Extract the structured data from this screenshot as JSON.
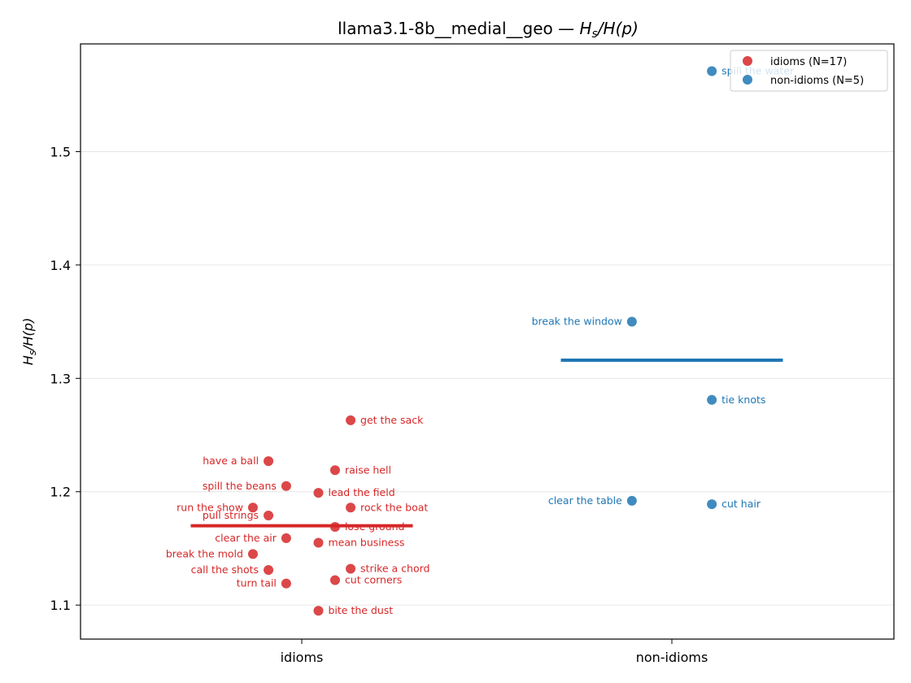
{
  "chart_data": {
    "type": "scatter",
    "title_main": "llama3.1-8b__medial__geo — ",
    "title_math": {
      "H": "H",
      "sub": "s",
      "rest": "/H(p)"
    },
    "ylabel_math": {
      "H": "H",
      "sub": "s",
      "rest": "/H(p)"
    },
    "xlabel": "",
    "categories": [
      "idioms",
      "non-idioms"
    ],
    "ylim": [
      1.07,
      1.595
    ],
    "yticks": [
      1.1,
      1.2,
      1.3,
      1.4,
      1.5
    ],
    "ytick_labels": [
      "1.1",
      "1.2",
      "1.3",
      "1.4",
      "1.5"
    ],
    "grid": "horizontal",
    "legend_position": "top-right",
    "series": [
      {
        "name": "idioms (N=17)",
        "category": "idioms",
        "color": "#d62728",
        "mean": 1.17,
        "points": [
          {
            "label": "get the sack",
            "y": 1.263,
            "offset": 0.22,
            "side": "right"
          },
          {
            "label": "have a ball",
            "y": 1.227,
            "offset": -0.15,
            "side": "left"
          },
          {
            "label": "raise hell",
            "y": 1.219,
            "offset": 0.15,
            "side": "right"
          },
          {
            "label": "spill the beans",
            "y": 1.205,
            "offset": -0.07,
            "side": "left"
          },
          {
            "label": "lead the field",
            "y": 1.199,
            "offset": 0.075,
            "side": "right"
          },
          {
            "label": "run the show",
            "y": 1.186,
            "offset": -0.22,
            "side": "left"
          },
          {
            "label": "rock the boat",
            "y": 1.186,
            "offset": 0.22,
            "side": "right"
          },
          {
            "label": "pull strings",
            "y": 1.179,
            "offset": -0.15,
            "side": "left"
          },
          {
            "label": "lose ground",
            "y": 1.169,
            "offset": 0.15,
            "side": "right"
          },
          {
            "label": "clear the air",
            "y": 1.159,
            "offset": -0.07,
            "side": "left"
          },
          {
            "label": "mean business",
            "y": 1.155,
            "offset": 0.075,
            "side": "right"
          },
          {
            "label": "break the mold",
            "y": 1.145,
            "offset": -0.22,
            "side": "left"
          },
          {
            "label": "call the shots",
            "y": 1.131,
            "offset": -0.15,
            "side": "left"
          },
          {
            "label": "strike a chord",
            "y": 1.132,
            "offset": 0.22,
            "side": "right"
          },
          {
            "label": "cut corners",
            "y": 1.122,
            "offset": 0.15,
            "side": "right"
          },
          {
            "label": "turn tail",
            "y": 1.119,
            "offset": -0.07,
            "side": "left"
          },
          {
            "label": "bite the dust",
            "y": 1.095,
            "offset": 0.075,
            "side": "right"
          }
        ]
      },
      {
        "name": "non-idioms (N=5)",
        "category": "non-idioms",
        "color": "#1f77b4",
        "mean": 1.316,
        "points": [
          {
            "label": "spill the water",
            "y": 1.571,
            "offset": 0.18,
            "side": "right"
          },
          {
            "label": "break the window",
            "y": 1.35,
            "offset": -0.18,
            "side": "left"
          },
          {
            "label": "tie knots",
            "y": 1.281,
            "offset": 0.18,
            "side": "right"
          },
          {
            "label": "clear the table",
            "y": 1.192,
            "offset": -0.18,
            "side": "left"
          },
          {
            "label": "cut hair",
            "y": 1.189,
            "offset": 0.18,
            "side": "right"
          }
        ]
      }
    ]
  }
}
